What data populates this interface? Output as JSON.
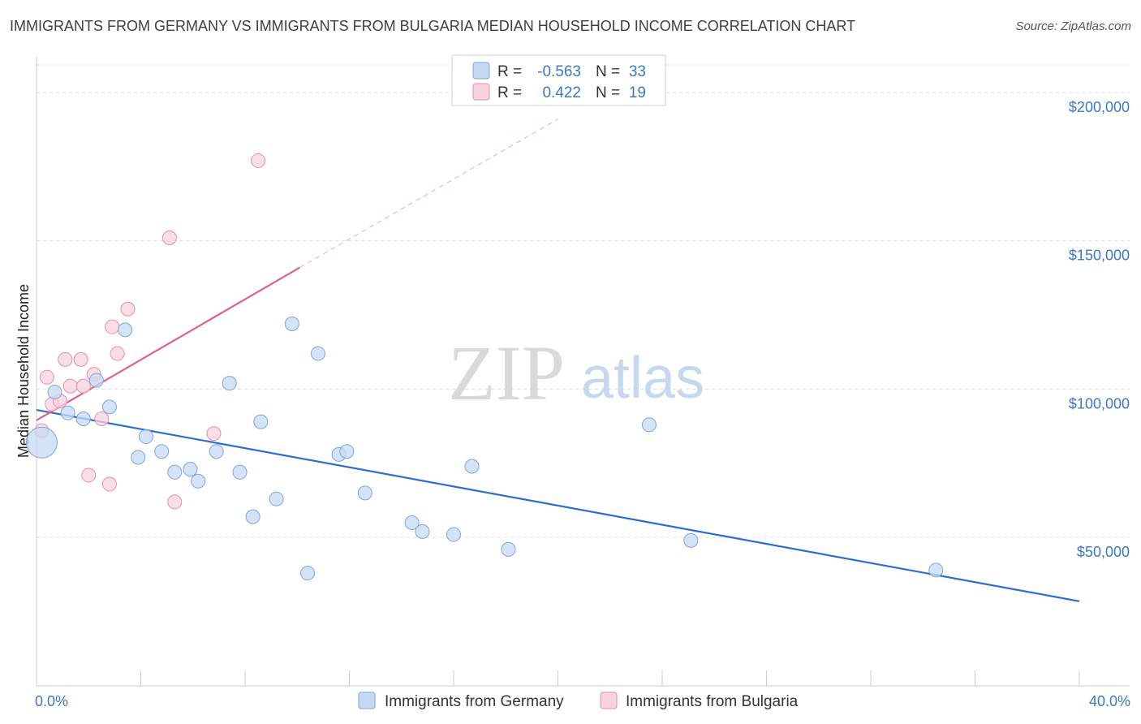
{
  "title": "IMMIGRANTS FROM GERMANY VS IMMIGRANTS FROM BULGARIA MEDIAN HOUSEHOLD INCOME CORRELATION CHART",
  "source": "Source: ZipAtlas.com",
  "watermark": {
    "zip": "ZIP",
    "atlas": "atlas"
  },
  "colors": {
    "germany_fill": "#c5d9f3",
    "germany_stroke": "#7aa6dc",
    "germany_line": "#2a6fd0",
    "bulgaria_fill": "#f8d3df",
    "bulgaria_stroke": "#e88ea9",
    "bulgaria_line": "#e0608a",
    "axis_text": "#3c78c8",
    "grid": "#dddddd"
  },
  "legend_top": {
    "germany": {
      "r_label": "R =",
      "r_value": "-0.563",
      "n_label": "N =",
      "n_value": "33"
    },
    "bulgaria": {
      "r_label": "R =",
      "r_value": "0.422",
      "n_label": "N =",
      "n_value": "19"
    }
  },
  "chart_data": {
    "type": "scatter",
    "title": "IMMIGRANTS FROM GERMANY VS IMMIGRANTS FROM BULGARIA MEDIAN HOUSEHOLD INCOME CORRELATION CHART",
    "xlabel": "",
    "ylabel": "Median Household Income",
    "xlim": [
      0,
      40
    ],
    "ylim": [
      0,
      212000
    ],
    "x_tick_labels": [
      "0.0%",
      "40.0%"
    ],
    "y_ticks": [
      50000,
      100000,
      150000,
      200000
    ],
    "y_tick_labels": [
      "$50,000",
      "$100,000",
      "$150,000",
      "$200,000"
    ],
    "grid": true,
    "series": [
      {
        "name": "Immigrants from Germany",
        "color": "#2a6fd0",
        "points": [
          {
            "x": 0.2,
            "y": 82000,
            "size": "large"
          },
          {
            "x": 0.7,
            "y": 99000
          },
          {
            "x": 1.2,
            "y": 92000
          },
          {
            "x": 1.8,
            "y": 90000
          },
          {
            "x": 2.3,
            "y": 103000
          },
          {
            "x": 2.8,
            "y": 94000
          },
          {
            "x": 3.4,
            "y": 120000
          },
          {
            "x": 3.9,
            "y": 77000
          },
          {
            "x": 4.2,
            "y": 84000
          },
          {
            "x": 4.8,
            "y": 79000
          },
          {
            "x": 5.3,
            "y": 72000
          },
          {
            "x": 5.9,
            "y": 73000
          },
          {
            "x": 6.2,
            "y": 69000
          },
          {
            "x": 6.9,
            "y": 79000
          },
          {
            "x": 7.4,
            "y": 102000
          },
          {
            "x": 7.8,
            "y": 72000
          },
          {
            "x": 8.3,
            "y": 57000
          },
          {
            "x": 8.6,
            "y": 89000
          },
          {
            "x": 9.2,
            "y": 63000
          },
          {
            "x": 9.8,
            "y": 122000
          },
          {
            "x": 10.4,
            "y": 38000
          },
          {
            "x": 10.8,
            "y": 112000
          },
          {
            "x": 11.6,
            "y": 78000
          },
          {
            "x": 11.9,
            "y": 79000
          },
          {
            "x": 12.6,
            "y": 65000
          },
          {
            "x": 14.4,
            "y": 55000
          },
          {
            "x": 14.8,
            "y": 52000
          },
          {
            "x": 16.0,
            "y": 51000
          },
          {
            "x": 16.7,
            "y": 74000
          },
          {
            "x": 18.1,
            "y": 46000
          },
          {
            "x": 23.5,
            "y": 88000
          },
          {
            "x": 25.1,
            "y": 49000
          },
          {
            "x": 34.5,
            "y": 39000
          }
        ],
        "trend": {
          "x": [
            0,
            40
          ],
          "y": [
            93000,
            28500
          ]
        }
      },
      {
        "name": "Immigrants from Bulgaria",
        "color": "#e0608a",
        "points": [
          {
            "x": 0.2,
            "y": 86000
          },
          {
            "x": 0.4,
            "y": 104000
          },
          {
            "x": 0.6,
            "y": 95000
          },
          {
            "x": 0.9,
            "y": 96000
          },
          {
            "x": 1.1,
            "y": 110000
          },
          {
            "x": 1.3,
            "y": 101000
          },
          {
            "x": 1.7,
            "y": 110000
          },
          {
            "x": 1.8,
            "y": 101000
          },
          {
            "x": 2.0,
            "y": 71000
          },
          {
            "x": 2.2,
            "y": 105000
          },
          {
            "x": 2.5,
            "y": 90000
          },
          {
            "x": 2.8,
            "y": 68000
          },
          {
            "x": 2.9,
            "y": 121000
          },
          {
            "x": 3.1,
            "y": 112000
          },
          {
            "x": 3.5,
            "y": 127000
          },
          {
            "x": 5.1,
            "y": 151000
          },
          {
            "x": 5.3,
            "y": 62000
          },
          {
            "x": 6.8,
            "y": 85000
          },
          {
            "x": 8.5,
            "y": 177000
          }
        ],
        "trend": {
          "x": [
            0,
            10.1
          ],
          "y": [
            89500,
            141000
          ]
        },
        "trend_extension": {
          "x": [
            10.1,
            20
          ],
          "y": [
            141000,
            191000
          ]
        }
      }
    ],
    "legend": [
      "Immigrants from Germany",
      "Immigrants from Bulgaria"
    ]
  }
}
